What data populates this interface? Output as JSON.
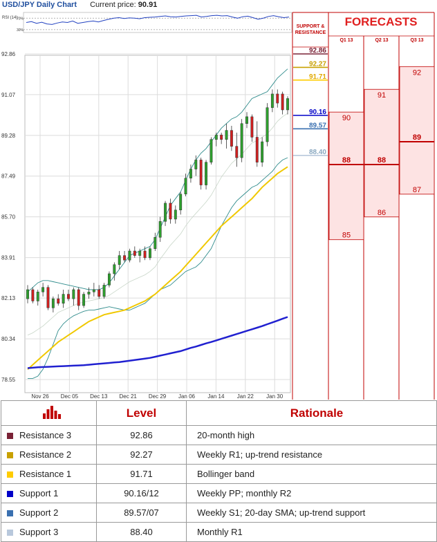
{
  "header": {
    "title": "USD/JPY Daily Chart",
    "price_label": "Current price:",
    "price_value": "90.91"
  },
  "rsi_label": "RSI (14)",
  "rsi_ticks": [
    "70%",
    "30%"
  ],
  "sr_header": "SUPPORT & RESISTANCE",
  "forecast_title": "FORECASTS",
  "quarters": [
    "Q1 13",
    "Q2 13",
    "Q3 13"
  ],
  "levels": [
    {
      "name": "Resistance 3",
      "level": "92.86",
      "rationale": "20-month high",
      "color": "#7a2236",
      "price": 92.86
    },
    {
      "name": "Resistance 2",
      "level": "92.27",
      "rationale": "Weekly R1; up-trend resistance",
      "color": "#c8a000",
      "price": 92.27
    },
    {
      "name": "Resistance 1",
      "level": "91.71",
      "rationale": "Bollinger band",
      "color": "#ffcc00",
      "price": 91.71
    },
    {
      "name": "Support 1",
      "level": "90.16/12",
      "rationale": "Weekly PP; monthly R2",
      "color": "#0000c8",
      "price": 90.16
    },
    {
      "name": "Support 2",
      "level": "89.57/07",
      "rationale": "Weekly S1; 20-day SMA; up-trend support",
      "color": "#3a70b0",
      "price": 89.57
    },
    {
      "name": "Support 3",
      "level": "88.40",
      "rationale": "Monthly R1",
      "color": "#b8c8dc",
      "price": 88.4
    }
  ],
  "table_header": {
    "level": "Level",
    "rationale": "Rationale",
    "icon": "bar-chart-icon"
  },
  "chart_data": {
    "type": "candlestick",
    "title": "USD/JPY Daily Chart",
    "y_ticks": [
      92.86,
      91.07,
      89.28,
      87.49,
      85.7,
      83.91,
      82.13,
      80.34,
      78.55
    ],
    "ylim": [
      78.55,
      92.86
    ],
    "x_ticks": [
      "Nov 26",
      "Dec 05",
      "Dec 13",
      "Dec 21",
      "Dec 29",
      "Jan 06",
      "Jan 14",
      "Jan 22",
      "Jan 30"
    ],
    "sr_labels": [
      "92.86",
      "92.27",
      "91.71",
      "90.16",
      "89.57",
      "88.40"
    ],
    "candles": [
      {
        "o": 82.1,
        "h": 82.7,
        "l": 81.9,
        "c": 82.5
      },
      {
        "o": 82.5,
        "h": 82.6,
        "l": 81.9,
        "c": 82.0
      },
      {
        "o": 82.0,
        "h": 82.5,
        "l": 81.8,
        "c": 82.4
      },
      {
        "o": 82.4,
        "h": 82.8,
        "l": 82.2,
        "c": 82.6
      },
      {
        "o": 82.6,
        "h": 82.7,
        "l": 81.6,
        "c": 81.7
      },
      {
        "o": 81.7,
        "h": 82.2,
        "l": 81.5,
        "c": 82.1
      },
      {
        "o": 82.1,
        "h": 82.3,
        "l": 81.8,
        "c": 81.9
      },
      {
        "o": 81.9,
        "h": 82.5,
        "l": 81.7,
        "c": 82.3
      },
      {
        "o": 82.3,
        "h": 82.5,
        "l": 82.0,
        "c": 82.1
      },
      {
        "o": 82.1,
        "h": 82.6,
        "l": 81.8,
        "c": 82.5
      },
      {
        "o": 82.5,
        "h": 82.6,
        "l": 81.6,
        "c": 81.8
      },
      {
        "o": 81.8,
        "h": 82.4,
        "l": 81.7,
        "c": 82.3
      },
      {
        "o": 82.3,
        "h": 82.6,
        "l": 82.1,
        "c": 82.4
      },
      {
        "o": 82.4,
        "h": 82.8,
        "l": 82.2,
        "c": 82.5
      },
      {
        "o": 82.5,
        "h": 82.7,
        "l": 82.1,
        "c": 82.2
      },
      {
        "o": 82.2,
        "h": 82.8,
        "l": 82.1,
        "c": 82.7
      },
      {
        "o": 82.7,
        "h": 83.3,
        "l": 82.6,
        "c": 83.2
      },
      {
        "o": 83.2,
        "h": 83.7,
        "l": 82.9,
        "c": 83.6
      },
      {
        "o": 83.6,
        "h": 84.2,
        "l": 83.4,
        "c": 84.0
      },
      {
        "o": 84.0,
        "h": 84.2,
        "l": 83.7,
        "c": 83.8
      },
      {
        "o": 83.8,
        "h": 84.3,
        "l": 83.7,
        "c": 84.2
      },
      {
        "o": 84.2,
        "h": 84.4,
        "l": 83.9,
        "c": 84.0
      },
      {
        "o": 84.0,
        "h": 84.3,
        "l": 83.7,
        "c": 84.2
      },
      {
        "o": 84.2,
        "h": 84.4,
        "l": 83.8,
        "c": 83.9
      },
      {
        "o": 83.9,
        "h": 84.4,
        "l": 83.8,
        "c": 84.3
      },
      {
        "o": 84.3,
        "h": 85.0,
        "l": 84.2,
        "c": 84.8
      },
      {
        "o": 84.8,
        "h": 85.7,
        "l": 84.6,
        "c": 85.5
      },
      {
        "o": 85.5,
        "h": 86.4,
        "l": 85.3,
        "c": 86.3
      },
      {
        "o": 86.3,
        "h": 86.5,
        "l": 85.4,
        "c": 85.6
      },
      {
        "o": 85.6,
        "h": 86.2,
        "l": 85.4,
        "c": 86.0
      },
      {
        "o": 86.0,
        "h": 86.8,
        "l": 85.8,
        "c": 86.7
      },
      {
        "o": 86.7,
        "h": 87.6,
        "l": 86.6,
        "c": 87.4
      },
      {
        "o": 87.4,
        "h": 88.0,
        "l": 87.2,
        "c": 87.8
      },
      {
        "o": 87.8,
        "h": 88.4,
        "l": 87.5,
        "c": 88.2
      },
      {
        "o": 88.2,
        "h": 88.3,
        "l": 86.9,
        "c": 87.1
      },
      {
        "o": 87.1,
        "h": 88.2,
        "l": 86.9,
        "c": 88.1
      },
      {
        "o": 88.1,
        "h": 89.2,
        "l": 88.0,
        "c": 89.1
      },
      {
        "o": 89.1,
        "h": 89.4,
        "l": 88.8,
        "c": 89.3
      },
      {
        "o": 89.3,
        "h": 89.4,
        "l": 88.9,
        "c": 89.1
      },
      {
        "o": 89.1,
        "h": 89.8,
        "l": 88.7,
        "c": 89.5
      },
      {
        "o": 89.5,
        "h": 89.7,
        "l": 88.6,
        "c": 88.8
      },
      {
        "o": 88.8,
        "h": 89.4,
        "l": 87.9,
        "c": 88.3
      },
      {
        "o": 88.3,
        "h": 90.0,
        "l": 88.1,
        "c": 89.8
      },
      {
        "o": 89.8,
        "h": 90.3,
        "l": 89.6,
        "c": 90.1
      },
      {
        "o": 90.1,
        "h": 90.2,
        "l": 89.0,
        "c": 89.2
      },
      {
        "o": 89.2,
        "h": 89.9,
        "l": 87.9,
        "c": 88.1
      },
      {
        "o": 88.1,
        "h": 89.2,
        "l": 87.9,
        "c": 89.0
      },
      {
        "o": 89.0,
        "h": 90.7,
        "l": 88.8,
        "c": 90.5
      },
      {
        "o": 90.5,
        "h": 91.3,
        "l": 90.3,
        "c": 91.1
      },
      {
        "o": 91.1,
        "h": 91.3,
        "l": 90.5,
        "c": 90.7
      },
      {
        "o": 91.1,
        "h": 91.2,
        "l": 90.2,
        "c": 90.4
      },
      {
        "o": 90.4,
        "h": 91.0,
        "l": 90.2,
        "c": 90.9
      }
    ],
    "sma_yellow": [
      79.0,
      79.2,
      79.4,
      79.6,
      79.8,
      80.0,
      80.2,
      80.35,
      80.5,
      80.65,
      80.8,
      80.95,
      81.1,
      81.2,
      81.3,
      81.4,
      81.45,
      81.5,
      81.55,
      81.6,
      81.7,
      81.8,
      81.9,
      82.0,
      82.15,
      82.3,
      82.5,
      82.7,
      82.9,
      83.1,
      83.3,
      83.55,
      83.8,
      84.05,
      84.3,
      84.55,
      84.8,
      85.05,
      85.3,
      85.5,
      85.7,
      85.9,
      86.1,
      86.3,
      86.5,
      86.75,
      87.0,
      87.2,
      87.4,
      87.6,
      87.75,
      87.9
    ],
    "sma_blue": [
      79.05,
      79.07,
      79.09,
      79.1,
      79.11,
      79.12,
      79.13,
      79.14,
      79.15,
      79.16,
      79.17,
      79.18,
      79.2,
      79.22,
      79.24,
      79.26,
      79.28,
      79.3,
      79.32,
      79.35,
      79.38,
      79.41,
      79.44,
      79.47,
      79.5,
      79.55,
      79.6,
      79.65,
      79.7,
      79.75,
      79.8,
      79.87,
      79.94,
      80.0,
      80.07,
      80.14,
      80.2,
      80.27,
      80.34,
      80.41,
      80.48,
      80.55,
      80.62,
      80.69,
      80.76,
      80.83,
      80.9,
      80.98,
      81.06,
      81.14,
      81.22,
      81.3
    ],
    "bb_upper": [
      82.4,
      82.6,
      82.8,
      82.9,
      82.9,
      82.85,
      82.8,
      82.75,
      82.7,
      82.65,
      82.6,
      82.55,
      82.5,
      82.5,
      82.5,
      82.6,
      82.8,
      83.1,
      83.4,
      83.7,
      84.0,
      84.1,
      84.2,
      84.3,
      84.4,
      84.7,
      85.2,
      85.7,
      86.2,
      86.5,
      86.8,
      87.3,
      87.8,
      88.2,
      88.5,
      88.7,
      89.0,
      89.3,
      89.6,
      89.8,
      90.0,
      90.1,
      90.3,
      90.6,
      90.9,
      91.0,
      91.1,
      91.2,
      91.5,
      91.8,
      92.0,
      92.2
    ],
    "bb_lower": [
      78.6,
      78.6,
      78.7,
      79.0,
      79.5,
      80.1,
      80.7,
      81.0,
      81.2,
      81.35,
      81.45,
      81.55,
      81.6,
      81.6,
      81.65,
      81.7,
      81.75,
      81.7,
      81.65,
      81.6,
      81.6,
      81.7,
      81.8,
      81.9,
      82.1,
      82.3,
      82.5,
      82.6,
      82.7,
      82.9,
      83.1,
      83.3,
      83.4,
      83.5,
      83.7,
      84.0,
      84.3,
      84.8,
      85.3,
      85.7,
      86.1,
      86.4,
      86.6,
      86.8,
      87.0,
      87.1,
      87.3,
      87.5,
      87.7,
      88.0,
      88.2,
      88.3
    ],
    "bb_mid": [
      80.5,
      80.6,
      80.75,
      80.9,
      81.1,
      81.3,
      81.5,
      81.6,
      81.7,
      81.8,
      81.9,
      81.95,
      82.0,
      82.05,
      82.1,
      82.15,
      82.25,
      82.4,
      82.55,
      82.7,
      82.85,
      82.95,
      83.05,
      83.15,
      83.3,
      83.5,
      83.85,
      84.15,
      84.45,
      84.7,
      84.95,
      85.3,
      85.6,
      85.85,
      86.1,
      86.35,
      86.65,
      87.05,
      87.45,
      87.75,
      88.05,
      88.25,
      88.45,
      88.7,
      88.95,
      89.05,
      89.2,
      89.35,
      89.6,
      89.9,
      90.1,
      90.25
    ],
    "rsi": [
      55,
      58,
      52,
      56,
      50,
      48,
      53,
      57,
      55,
      60,
      52,
      55,
      58,
      60,
      57,
      62,
      66,
      70,
      72,
      69,
      71,
      70,
      68,
      72,
      73,
      74,
      76,
      78,
      75,
      74,
      76,
      78,
      79,
      80,
      74,
      76,
      79,
      80,
      78,
      79,
      74,
      70,
      75,
      77,
      72,
      66,
      70,
      76,
      79,
      75,
      72,
      74
    ],
    "forecasts": [
      {
        "quarter": "Q1 13",
        "high": "90",
        "central": "88",
        "low": "85"
      },
      {
        "quarter": "Q2 13",
        "high": "91",
        "central": "88",
        "low": "86"
      },
      {
        "quarter": "Q3 13",
        "high": "92",
        "central": "89",
        "low": "87"
      }
    ]
  }
}
